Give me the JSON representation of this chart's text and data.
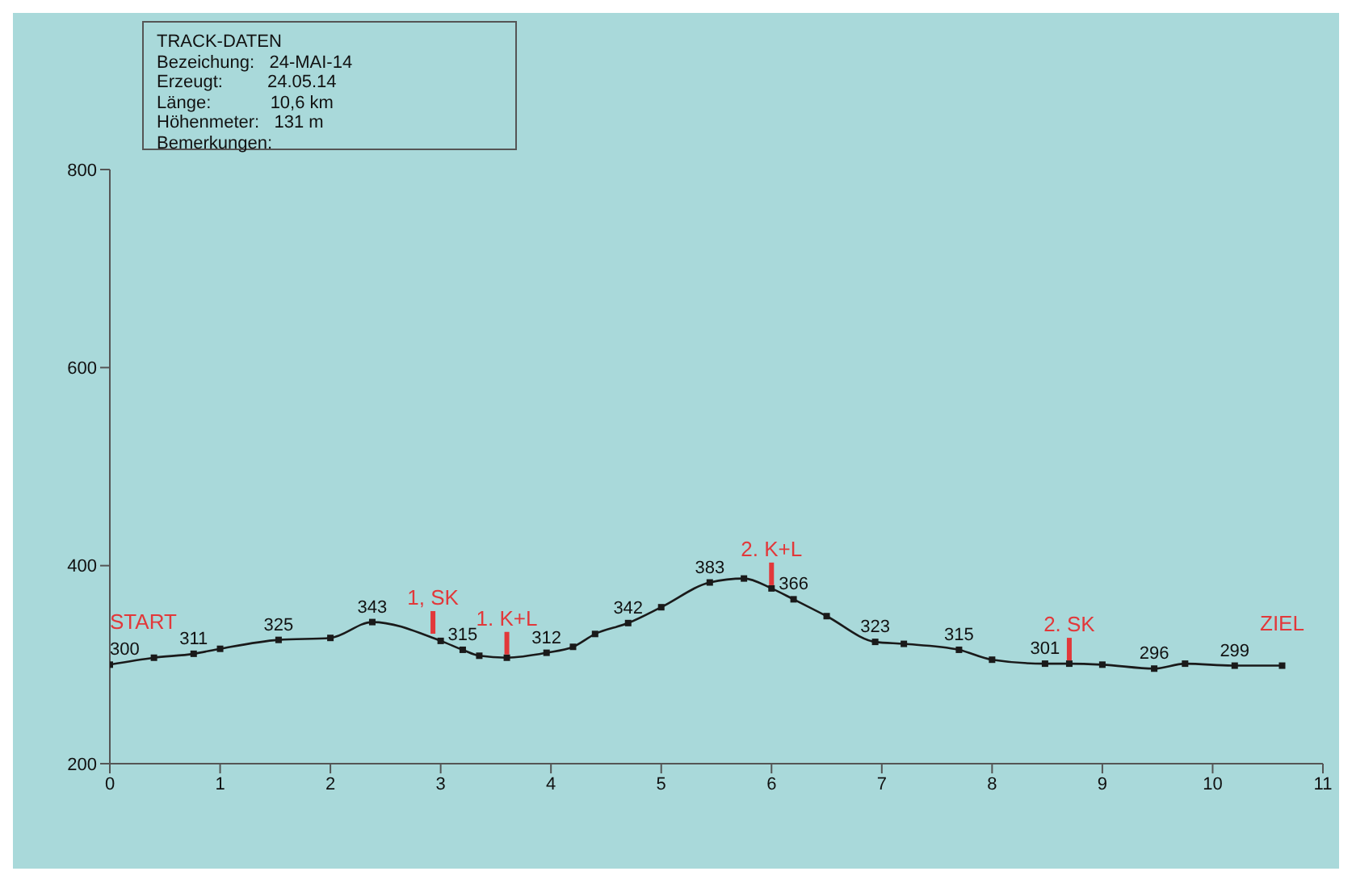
{
  "chart_data": {
    "type": "line",
    "x": [
      0,
      0.4,
      0.76,
      1.0,
      1.53,
      2.0,
      2.38,
      3.0,
      3.2,
      3.35,
      3.6,
      3.96,
      4.2,
      4.4,
      4.7,
      5.0,
      5.44,
      5.75,
      6.0,
      6.2,
      6.5,
      6.94,
      7.2,
      7.7,
      8.0,
      8.48,
      8.7,
      9.0,
      9.47,
      9.75,
      10.2,
      10.63
    ],
    "series": [
      {
        "color": "#1a1a1a",
        "values": [
          300,
          307,
          311,
          316,
          325,
          327,
          343,
          324,
          315,
          309,
          307,
          312,
          318,
          331,
          342,
          358,
          383,
          387,
          377,
          366,
          349,
          323,
          321,
          315,
          305,
          301,
          301,
          300,
          296,
          301,
          299,
          299
        ],
        "value_labels": [
          "300",
          null,
          "311",
          null,
          "325",
          null,
          "343",
          null,
          "315",
          null,
          null,
          "312",
          null,
          null,
          "342",
          null,
          "383",
          null,
          null,
          "366",
          null,
          "323",
          null,
          "315",
          null,
          "301",
          null,
          null,
          "296",
          null,
          "299",
          null
        ]
      }
    ],
    "marker": "square",
    "line_style": "solid",
    "grid": false,
    "legend": false,
    "xlim": [
      0,
      11
    ],
    "xticks": [
      0,
      1,
      2,
      3,
      4,
      5,
      6,
      7,
      8,
      9,
      10,
      11
    ],
    "ylim": [
      200,
      800
    ],
    "yticks": [
      200,
      400,
      600,
      800
    ],
    "annotations": [
      "TRACK-DATEN",
      "Bezeichung:   24-MAI-14",
      "Erzeugt:         24.05.14",
      "Länge:            10,6 km",
      "Höhenmeter:   131 m",
      "Bemerkungen:",
      {
        "text": "1, SK",
        "x": 2.93,
        "y": 328
      },
      {
        "text": "1. K+L",
        "x": 3.6,
        "y": 307
      },
      {
        "text": "2. K+L",
        "x": 6.0,
        "y": 377
      },
      {
        "text": "2. SK",
        "x": 8.7,
        "y": 301
      },
      {
        "text": "START",
        "x": 0,
        "y": 300
      },
      {
        "text": "ZIEL",
        "x": 10.63,
        "y": 299
      }
    ]
  }
}
